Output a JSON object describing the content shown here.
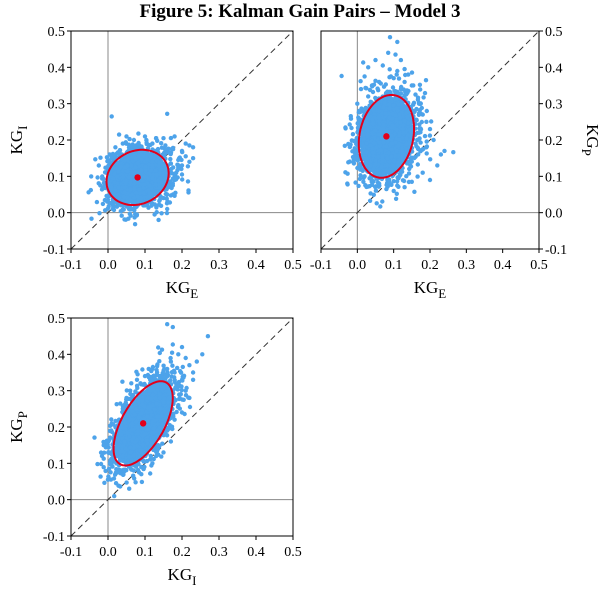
{
  "figure": {
    "title": "Figure 5: Kalman Gain Pairs – Model 3"
  },
  "colors": {
    "points": "#4da3ea",
    "ellipse": "#e3001b",
    "mean": "#e3001b",
    "diagonal": "#333333",
    "zero_axis": "#888888"
  },
  "chart_data": [
    {
      "type": "scatter",
      "title": "",
      "xlabel": "KG",
      "xlabel_sub": "E",
      "ylabel": "KG",
      "ylabel_sub": "I",
      "ylabel_side": "left",
      "xlim": [
        -0.1,
        0.5
      ],
      "ylim": [
        -0.1,
        0.5
      ],
      "xticks": [
        "-0.1",
        "0.0",
        "0.1",
        "0.2",
        "0.3",
        "0.4",
        "0.5"
      ],
      "yticks": [
        "-0.1",
        "0.0",
        "0.1",
        "0.2",
        "0.3",
        "0.4",
        "0.5"
      ],
      "mean": [
        0.08,
        0.097
      ],
      "ellipse": {
        "sd": [
          0.042,
          0.038
        ],
        "rho": 0.15
      },
      "cloud": {
        "n": 1500,
        "seed": 7,
        "fill_scale": 1.5
      },
      "outliers": [
        [
          0.01,
          0.265
        ],
        [
          0.16,
          0.272
        ],
        [
          0.03,
          0.215
        ],
        [
          0.05,
          0.21
        ],
        [
          0.1,
          0.21
        ],
        [
          0.13,
          0.205
        ],
        [
          0.15,
          0.205
        ],
        [
          0.18,
          0.21
        ],
        [
          0.21,
          0.19
        ],
        [
          0.22,
          0.185
        ],
        [
          0.23,
          0.18
        ],
        [
          0.2,
          0.17
        ],
        [
          0.21,
          0.155
        ],
        [
          0.19,
          0.145
        ],
        [
          0.22,
          0.14
        ],
        [
          0.23,
          0.15
        ],
        [
          0.19,
          0.125
        ],
        [
          0.17,
          0.11
        ],
        [
          0.2,
          0.105
        ],
        [
          0.18,
          0.09
        ],
        [
          0.175,
          0.075
        ],
        [
          0.16,
          0.05
        ],
        [
          0.15,
          0.04
        ],
        [
          0.14,
          0.035
        ],
        [
          0.16,
          0.01
        ],
        [
          0.12,
          0.025
        ],
        [
          0.1,
          0.02
        ],
        [
          0.08,
          0.03
        ],
        [
          0.06,
          0.035
        ],
        [
          0.03,
          0.04
        ],
        [
          0.02,
          0.06
        ],
        [
          0.0,
          0.07
        ],
        [
          0.0,
          0.09
        ],
        [
          -0.005,
          0.11
        ],
        [
          0.005,
          0.125
        ],
        [
          0.01,
          0.15
        ],
        [
          0.02,
          0.18
        ],
        [
          0.04,
          0.19
        ],
        [
          0.07,
          0.2
        ],
        [
          0.12,
          0.19
        ],
        [
          0.155,
          0.185
        ],
        [
          0.165,
          0.165
        ],
        [
          0.135,
          0.175
        ],
        [
          0.03,
          0.165
        ],
        [
          0.045,
          0.055
        ],
        [
          0.11,
          0.045
        ],
        [
          0.09,
          0.04
        ],
        [
          0.2,
          0.13
        ],
        [
          0.17,
          0.135
        ],
        [
          0.025,
          0.08
        ]
      ]
    },
    {
      "type": "scatter",
      "title": "",
      "xlabel": "KG",
      "xlabel_sub": "E",
      "ylabel": "KG",
      "ylabel_sub": "P",
      "ylabel_side": "right",
      "xlim": [
        -0.1,
        0.5
      ],
      "ylim": [
        -0.1,
        0.5
      ],
      "xticks": [
        "-0.1",
        "0.0",
        "0.1",
        "0.2",
        "0.3",
        "0.4",
        "0.5"
      ],
      "yticks": [
        "-0.1",
        "0.0",
        "0.1",
        "0.2",
        "0.3",
        "0.4",
        "0.5"
      ],
      "mean": [
        0.08,
        0.21
      ],
      "ellipse": {
        "sd": [
          0.038,
          0.057
        ],
        "rho": 0.18
      },
      "cloud": {
        "n": 1700,
        "seed": 11,
        "fill_scale": 1.5
      },
      "outliers": [
        [
          0.09,
          0.483
        ],
        [
          0.11,
          0.47
        ],
        [
          0.085,
          0.44
        ],
        [
          0.105,
          0.435
        ],
        [
          0.05,
          0.42
        ],
        [
          0.12,
          0.42
        ],
        [
          0.03,
          0.4
        ],
        [
          0.07,
          0.405
        ],
        [
          0.13,
          0.395
        ],
        [
          0.02,
          0.375
        ],
        [
          0.14,
          0.38
        ],
        [
          0.11,
          0.39
        ],
        [
          0.01,
          0.34
        ],
        [
          0.15,
          0.35
        ],
        [
          0.13,
          0.36
        ],
        [
          0.16,
          0.325
        ],
        [
          0.0,
          0.3
        ],
        [
          0.17,
          0.3
        ],
        [
          0.005,
          0.28
        ],
        [
          0.18,
          0.27
        ],
        [
          0.19,
          0.25
        ],
        [
          0.2,
          0.23
        ],
        [
          0.17,
          0.22
        ],
        [
          0.21,
          0.2
        ],
        [
          0.16,
          0.19
        ],
        [
          0.19,
          0.18
        ],
        [
          0.23,
          0.16
        ],
        [
          0.24,
          0.17
        ],
        [
          0.22,
          0.13
        ],
        [
          0.18,
          0.11
        ],
        [
          0.2,
          0.09
        ],
        [
          0.15,
          0.085
        ],
        [
          0.13,
          0.07
        ],
        [
          0.1,
          0.06
        ],
        [
          0.08,
          0.065
        ],
        [
          0.06,
          0.08
        ],
        [
          0.04,
          0.09
        ],
        [
          0.02,
          0.1
        ],
        [
          0.01,
          0.12
        ],
        [
          -0.005,
          0.15
        ],
        [
          0.0,
          0.17
        ],
        [
          0.005,
          0.2
        ],
        [
          0.04,
          0.35
        ],
        [
          0.06,
          0.36
        ],
        [
          0.1,
          0.37
        ],
        [
          0.12,
          0.34
        ],
        [
          0.03,
          0.32
        ],
        [
          0.155,
          0.28
        ],
        [
          0.035,
          0.13
        ],
        [
          0.165,
          0.2
        ]
      ]
    },
    {
      "type": "scatter",
      "title": "",
      "xlabel": "KG",
      "xlabel_sub": "I",
      "ylabel": "KG",
      "ylabel_sub": "P",
      "ylabel_side": "left",
      "xlim": [
        -0.1,
        0.5
      ],
      "ylim": [
        -0.1,
        0.5
      ],
      "xticks": [
        "-0.1",
        "0.0",
        "0.1",
        "0.2",
        "0.3",
        "0.4",
        "0.5"
      ],
      "yticks": [
        "-0.1",
        "0.0",
        "0.1",
        "0.2",
        "0.3",
        "0.4",
        "0.5"
      ],
      "mean": [
        0.095,
        0.21
      ],
      "ellipse": {
        "sd": [
          0.04,
          0.058
        ],
        "rho": 0.6
      },
      "cloud": {
        "n": 1700,
        "seed": 23,
        "fill_scale": 1.5
      },
      "outliers": [
        [
          0.16,
          0.483
        ],
        [
          0.175,
          0.475
        ],
        [
          0.27,
          0.45
        ],
        [
          0.255,
          0.4
        ],
        [
          0.2,
          0.42
        ],
        [
          0.19,
          0.4
        ],
        [
          0.21,
          0.39
        ],
        [
          0.17,
          0.38
        ],
        [
          0.22,
          0.37
        ],
        [
          0.16,
          0.36
        ],
        [
          0.18,
          0.35
        ],
        [
          0.23,
          0.35
        ],
        [
          0.14,
          0.34
        ],
        [
          0.2,
          0.33
        ],
        [
          0.12,
          0.32
        ],
        [
          0.21,
          0.3
        ],
        [
          0.22,
          0.28
        ],
        [
          0.19,
          0.26
        ],
        [
          0.08,
          0.345
        ],
        [
          0.1,
          0.34
        ],
        [
          0.06,
          0.3
        ],
        [
          0.05,
          0.28
        ],
        [
          0.04,
          0.25
        ],
        [
          0.03,
          0.22
        ],
        [
          0.01,
          0.21
        ],
        [
          0.02,
          0.18
        ],
        [
          0.03,
          0.15
        ],
        [
          0.04,
          0.12
        ],
        [
          0.05,
          0.1
        ],
        [
          0.07,
          0.08
        ],
        [
          0.09,
          0.09
        ],
        [
          0.12,
          0.1
        ],
        [
          0.15,
          0.13
        ],
        [
          0.17,
          0.16
        ],
        [
          0.16,
          0.19
        ],
        [
          0.18,
          0.22
        ],
        [
          0.17,
          0.25
        ],
        [
          0.2,
          0.24
        ],
        [
          0.14,
          0.28
        ],
        [
          0.23,
          0.33
        ],
        [
          0.24,
          0.38
        ],
        [
          0.15,
          0.31
        ],
        [
          0.11,
          0.36
        ],
        [
          0.09,
          0.07
        ],
        [
          0.13,
          0.12
        ],
        [
          0.06,
          0.13
        ]
      ]
    }
  ]
}
